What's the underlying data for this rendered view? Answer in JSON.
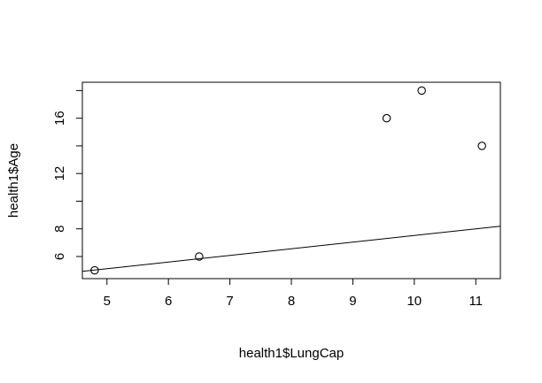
{
  "chart_data": {
    "type": "scatter",
    "xlabel": "health1$LungCap",
    "ylabel": "health1$Age",
    "xlim": [
      4.6,
      11.4
    ],
    "ylim": [
      4.4,
      18.6
    ],
    "x_ticks": [
      5,
      6,
      7,
      8,
      9,
      10,
      11
    ],
    "y_ticks_labeled": [
      6,
      8,
      12,
      16
    ],
    "y_ticks_all": [
      6,
      8,
      10,
      12,
      14,
      16,
      18
    ],
    "grid": false,
    "points": [
      {
        "x": 4.8,
        "y": 5.0
      },
      {
        "x": 6.5,
        "y": 6.0
      },
      {
        "x": 9.55,
        "y": 16.0
      },
      {
        "x": 10.12,
        "y": 18.0
      },
      {
        "x": 11.1,
        "y": 14.0
      }
    ],
    "regression_line": {
      "intercept": 2.72,
      "slope": 0.48
    }
  }
}
